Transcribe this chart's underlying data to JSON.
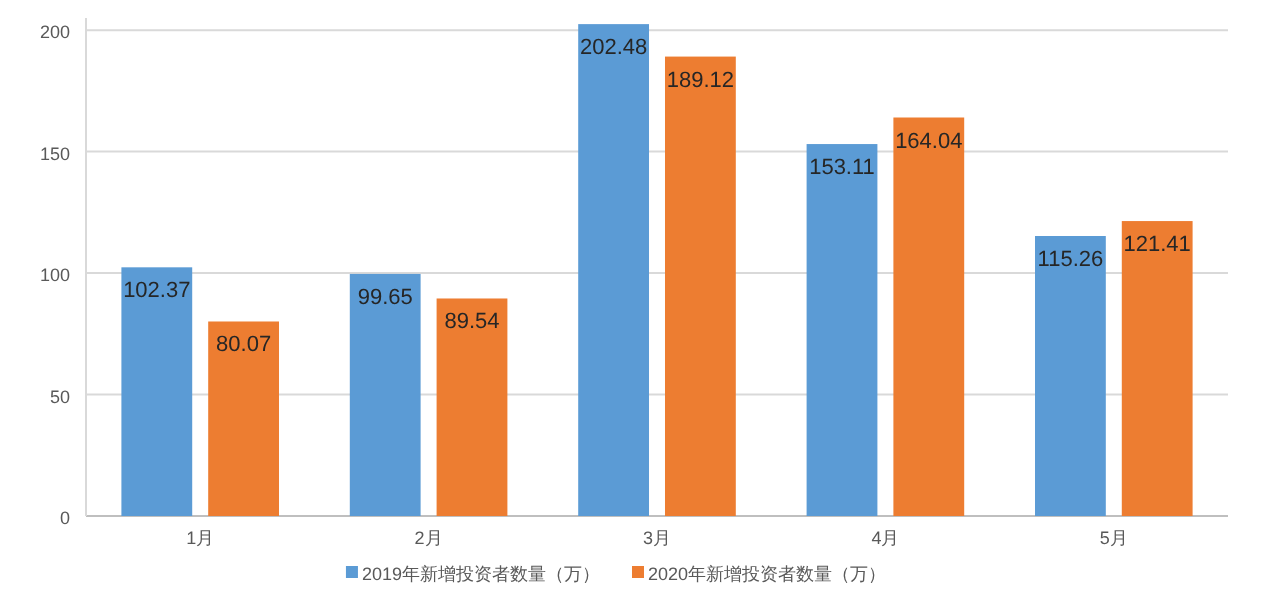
{
  "chart_data": {
    "type": "bar",
    "categories": [
      "1月",
      "2月",
      "3月",
      "4月",
      "5月"
    ],
    "series": [
      {
        "name": "2019年新增投资者数量（万）",
        "color": "#5b9bd5",
        "values": [
          102.37,
          99.65,
          202.48,
          153.11,
          115.26
        ]
      },
      {
        "name": "2020年新增投资者数量（万）",
        "color": "#ed7d31",
        "values": [
          80.07,
          89.54,
          189.12,
          164.04,
          121.41
        ]
      }
    ],
    "ylim": [
      0,
      205
    ],
    "yticks": [
      0,
      50,
      100,
      150,
      200
    ],
    "grid": "y",
    "legend": "bottom",
    "data_labels": true
  }
}
